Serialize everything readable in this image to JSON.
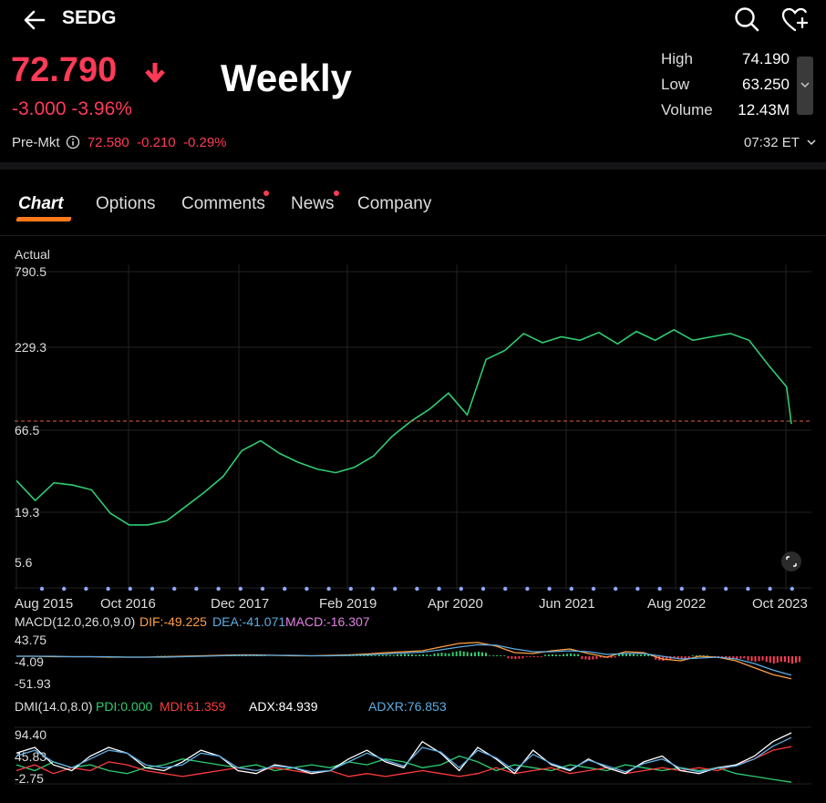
{
  "header": {
    "title": "SEDG"
  },
  "quote": {
    "price": "72.790",
    "change": "-3.000 -3.96%",
    "overlay_label": "Weekly",
    "stats": [
      {
        "label": "High",
        "value": "74.190"
      },
      {
        "label": "Low",
        "value": "63.250"
      },
      {
        "label": "Volume",
        "value": "12.43M"
      }
    ],
    "premarket": {
      "label": "Pre-Mkt",
      "price": "72.580",
      "change": "-0.210",
      "percent": "-0.29%"
    },
    "time": "07:32 ET"
  },
  "tabs": [
    {
      "label": "Chart",
      "active": true,
      "dot": false
    },
    {
      "label": "Options",
      "active": false,
      "dot": false
    },
    {
      "label": "Comments",
      "active": false,
      "dot": true
    },
    {
      "label": "News",
      "active": false,
      "dot": true
    },
    {
      "label": "Company",
      "active": false,
      "dot": false
    }
  ],
  "colors": {
    "accent_red": "#ff3b57",
    "price_line": "#2ecc71",
    "tab_accent": "#ff7a1a",
    "dif": "#ff9f43",
    "dea": "#5dade2",
    "macd": "#e580e5",
    "pdi": "#2ecc71",
    "mdi": "#ff3b3b",
    "adx": "#ffffff",
    "adxr": "#5dade2"
  },
  "chart_data": [
    {
      "type": "line",
      "scale": "log",
      "y_title": "Actual",
      "yticks": [
        "790.5",
        "229.3",
        "66.5",
        "19.3",
        "5.6"
      ],
      "ylim": [
        5.6,
        790.5
      ],
      "xticks": [
        "Aug 2015",
        "Oct 2016",
        "Dec 2017",
        "Feb 2019",
        "Apr 2020",
        "Jun 2021",
        "Aug 2022",
        "Oct 2023"
      ],
      "reference_line": 72.79,
      "grid": true,
      "series": [
        {
          "x": [
            2015.6,
            2015.8,
            2016.0,
            2016.2,
            2016.4,
            2016.6,
            2016.8,
            2017.0,
            2017.2,
            2017.4,
            2017.6,
            2017.8,
            2018.0,
            2018.2,
            2018.4,
            2018.6,
            2018.8,
            2019.0,
            2019.2,
            2019.4,
            2019.6,
            2019.8,
            2020.0,
            2020.2,
            2020.4,
            2020.6,
            2020.8,
            2021.0,
            2021.2,
            2021.4,
            2021.6,
            2021.8,
            2022.0,
            2022.2,
            2022.4,
            2022.6,
            2022.8,
            2023.0,
            2023.2,
            2023.4,
            2023.6,
            2023.8,
            2023.85
          ],
          "values": [
            30,
            22,
            29,
            28,
            26,
            18,
            15,
            15,
            16,
            20,
            25,
            32,
            48,
            56,
            46,
            40,
            36,
            34,
            37,
            44,
            60,
            76,
            92,
            118,
            84,
            200,
            230,
            300,
            260,
            285,
            270,
            305,
            255,
            310,
            270,
            318,
            270,
            285,
            300,
            270,
            185,
            130,
            72.79
          ]
        }
      ]
    },
    {
      "type": "bar",
      "title": "MACD(12.0,26.0,9.0)",
      "yticks": [
        "43.75",
        "-4.09",
        "-51.93"
      ],
      "ylim": [
        -51.93,
        43.75
      ],
      "legend": [
        {
          "label": "DIF:-49.225",
          "color": "#ff9f43"
        },
        {
          "label": "DEA:-41.071",
          "color": "#5dade2"
        },
        {
          "label": "MACD:-16.307",
          "color": "#e580e5"
        }
      ],
      "series": [
        {
          "name": "MACD",
          "values": [
            0,
            0,
            0,
            0,
            0,
            0,
            0,
            0,
            1,
            1,
            1,
            1,
            2,
            1,
            0,
            0,
            0,
            1,
            1,
            2,
            3,
            5,
            4,
            8,
            12,
            10,
            2,
            -6,
            -2,
            4,
            6,
            -8,
            -4,
            6,
            4,
            -10,
            -6,
            2,
            -4,
            -6,
            -12,
            -16,
            -16.3
          ]
        },
        {
          "name": "DIF",
          "values": [
            0,
            0,
            -1,
            -1,
            -1,
            -2,
            -2,
            -2,
            -1,
            0,
            1,
            2,
            3,
            3,
            2,
            1,
            1,
            2,
            3,
            5,
            8,
            10,
            12,
            20,
            28,
            30,
            22,
            8,
            6,
            12,
            16,
            6,
            -2,
            10,
            8,
            -6,
            -10,
            0,
            -2,
            -10,
            -25,
            -40,
            -49.225
          ]
        },
        {
          "name": "DEA",
          "values": [
            0,
            0,
            0,
            -1,
            -1,
            -1,
            -2,
            -2,
            -2,
            -1,
            0,
            1,
            2,
            2,
            2,
            2,
            1,
            1,
            2,
            3,
            5,
            7,
            9,
            14,
            20,
            25,
            24,
            16,
            10,
            10,
            12,
            10,
            4,
            6,
            6,
            0,
            -6,
            -4,
            -2,
            -6,
            -16,
            -30,
            -41.071
          ]
        }
      ]
    },
    {
      "type": "line",
      "title": "DMI(14.0,8.0)",
      "yticks": [
        "94.40",
        "45.83",
        "-2.75"
      ],
      "ylim": [
        -2.75,
        94.4
      ],
      "legend": [
        {
          "label": "PDI:0.000",
          "color": "#2ecc71"
        },
        {
          "label": "MDI:61.359",
          "color": "#ff3b3b"
        },
        {
          "label": "ADX:84.939",
          "color": "#ffffff"
        },
        {
          "label": "ADXR:76.853",
          "color": "#5dade2"
        }
      ],
      "series": [
        {
          "name": "PDI",
          "values": [
            30,
            20,
            35,
            25,
            30,
            20,
            15,
            25,
            30,
            40,
            35,
            30,
            25,
            30,
            20,
            25,
            30,
            25,
            35,
            30,
            40,
            35,
            25,
            30,
            45,
            35,
            20,
            30,
            25,
            20,
            30,
            25,
            20,
            30,
            25,
            20,
            25,
            20,
            25,
            15,
            10,
            5,
            0
          ]
        },
        {
          "name": "MDI",
          "values": [
            20,
            30,
            15,
            25,
            20,
            35,
            30,
            20,
            15,
            10,
            15,
            20,
            25,
            20,
            25,
            20,
            15,
            20,
            10,
            15,
            10,
            15,
            20,
            15,
            10,
            15,
            25,
            15,
            20,
            25,
            15,
            20,
            25,
            15,
            20,
            25,
            20,
            25,
            20,
            30,
            40,
            55,
            61.359
          ]
        },
        {
          "name": "ADX",
          "values": [
            50,
            60,
            30,
            20,
            45,
            60,
            50,
            25,
            20,
            35,
            55,
            45,
            20,
            15,
            30,
            25,
            15,
            20,
            40,
            55,
            35,
            25,
            70,
            50,
            20,
            60,
            40,
            15,
            55,
            30,
            20,
            40,
            25,
            15,
            35,
            45,
            20,
            15,
            25,
            30,
            45,
            70,
            84.939
          ]
        },
        {
          "name": "ADXR",
          "values": [
            45,
            55,
            35,
            25,
            40,
            55,
            50,
            30,
            25,
            30,
            50,
            45,
            25,
            20,
            28,
            25,
            18,
            20,
            35,
            50,
            38,
            28,
            60,
            52,
            25,
            55,
            42,
            20,
            48,
            32,
            22,
            38,
            28,
            18,
            32,
            40,
            24,
            18,
            24,
            28,
            40,
            62,
            76.853
          ]
        }
      ]
    }
  ]
}
